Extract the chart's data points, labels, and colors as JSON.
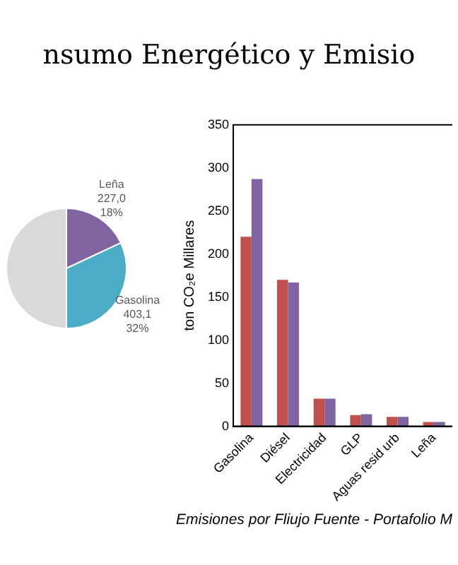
{
  "chart_data": [
    {
      "type": "pie",
      "title": "nsumo Energético y Emisio",
      "categories": [
        "Leña",
        "Gasolina",
        null
      ],
      "values": [
        227.0,
        403.1,
        630.0
      ],
      "colors": [
        "#8064a2",
        "#4bacc6",
        "#d9d9d9"
      ],
      "value_labels": [
        "227,0\n18%",
        "403,1\n32%",
        null
      ],
      "legend": false
    },
    {
      "type": "bar",
      "ylabel": "ton CO₂e Millares",
      "categories": [
        "Gasolina",
        "Diésel",
        "Electricidad",
        "GLP",
        "Aguas resid urb",
        "Leña"
      ],
      "series": [
        {
          "color": "#c0504d",
          "values": [
            220,
            170,
            32,
            13,
            11,
            5
          ]
        },
        {
          "color": "#8064a2",
          "values": [
            287,
            167,
            32,
            14,
            11,
            5
          ]
        }
      ],
      "ylim": [
        0,
        350
      ],
      "yticks": [
        0,
        50,
        100,
        150,
        200,
        250,
        300,
        350
      ],
      "grid": false,
      "legend": false,
      "annotations": [
        "Emisiones por Fliujo Fuente - Portafolio M"
      ]
    }
  ]
}
